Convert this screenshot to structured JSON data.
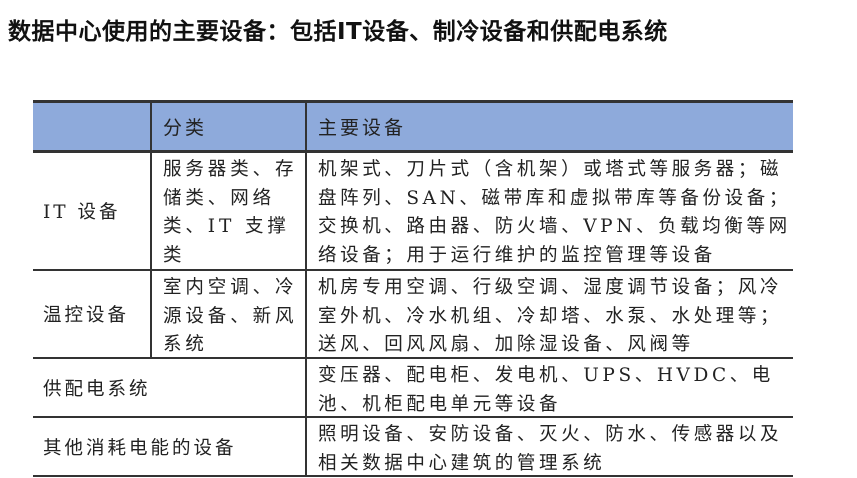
{
  "title": "数据中心使用的主要设备：包括IT设备、制冷设备和供配电系统",
  "table": {
    "headers": [
      "",
      "分类",
      "主要设备"
    ],
    "rows": [
      {
        "name": "IT 设备",
        "category": [
          "服务器类、存",
          "储类、网络",
          "类、IT 支撑",
          "类"
        ],
        "equipment": [
          "机架式、刀片式（含机架）或塔式等服务器；磁",
          "盘阵列、SAN、磁带库和虚拟带库等备份设备；",
          "交换机、路由器、防火墙、VPN、负载均衡等网",
          "络设备；用于运行维护的监控管理等设备"
        ]
      },
      {
        "name": "温控设备",
        "category": [
          "室内空调、冷",
          "源设备、新风",
          "系统"
        ],
        "equipment": [
          "机房专用空调、行级空调、湿度调节设备；风冷",
          "室外机、冷水机组、冷却塔、水泵、水处理等；",
          "送风、回风风扇、加除湿设备、风阀等"
        ]
      },
      {
        "name": "供配电系统",
        "equipment": [
          "变压器、配电柜、发电机、UPS、HVDC、电",
          "池、机柜配电单元等设备"
        ]
      },
      {
        "name": "其他消耗电能的设备",
        "equipment": [
          "照明设备、安防设备、灭火、防水、传感器以及",
          "相关数据中心建筑的管理系统"
        ]
      }
    ],
    "header_color": "#8eaadb"
  }
}
